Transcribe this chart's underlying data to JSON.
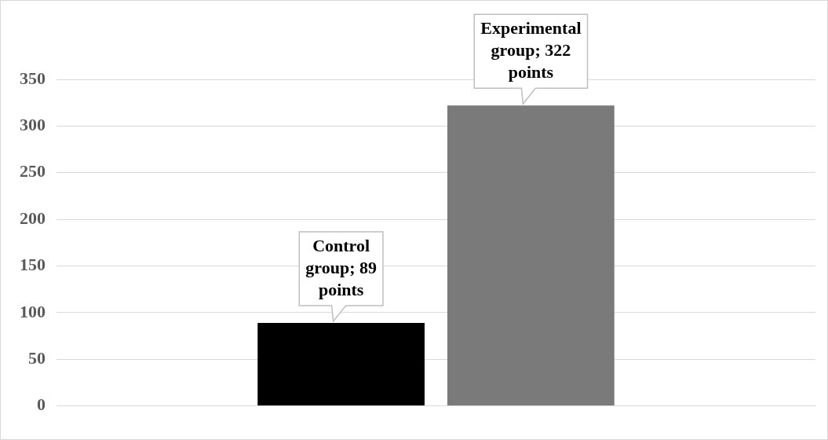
{
  "chart_data": {
    "type": "bar",
    "categories": [
      null
    ],
    "series": [
      {
        "color": "#000000",
        "values": [
          89
        ],
        "value_labels": [
          "Control group; 89 points"
        ]
      },
      {
        "color": "#7a7a7a",
        "values": [
          322
        ],
        "value_labels": [
          "Experimental group; 322 points"
        ]
      }
    ],
    "ylim": [
      0,
      350
    ],
    "yticks": [
      0,
      50,
      100,
      150,
      200,
      250,
      300,
      350
    ],
    "grid": "y"
  }
}
